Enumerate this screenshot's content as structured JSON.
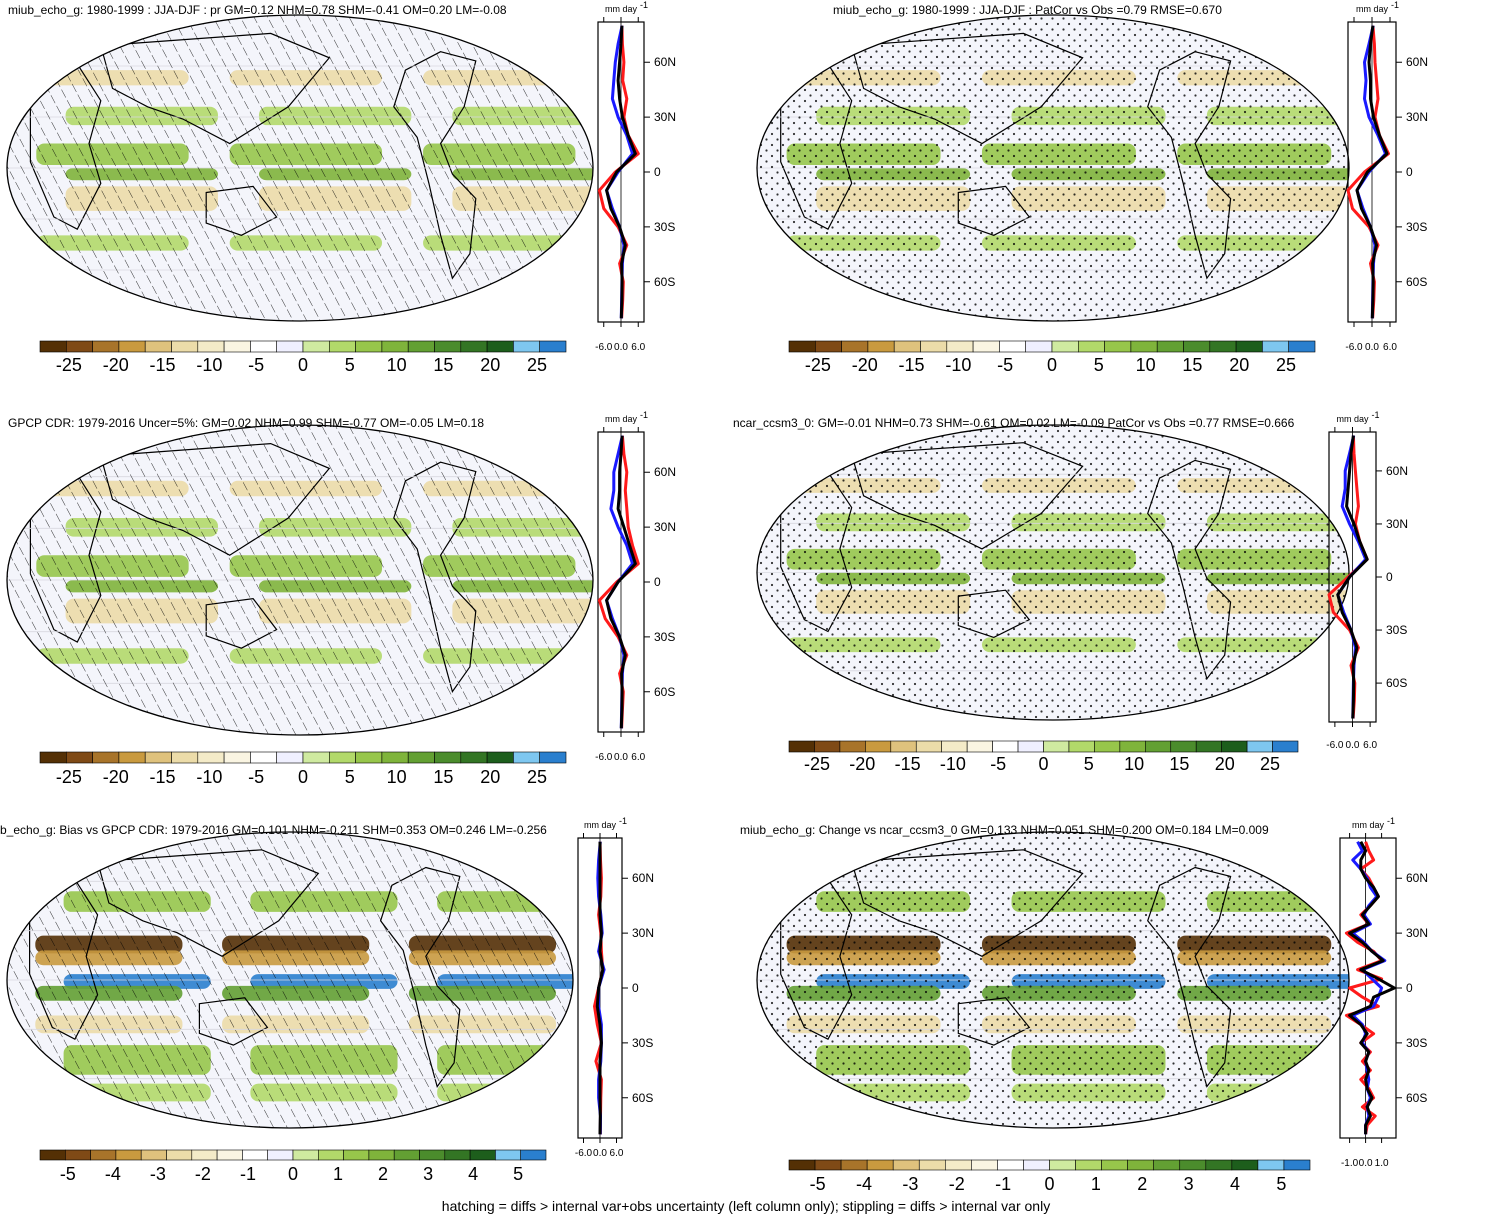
{
  "footnote": "hatching = diffs > internal var+obs uncertainty (left column only); stippling = diffs > internal var only",
  "colors": {
    "palette": [
      "#543005",
      "#7f4a16",
      "#a8742a",
      "#c99a3f",
      "#dfc27d",
      "#ecdca9",
      "#f4ebc8",
      "#faf5e2",
      "#ffffff",
      "#f0f0ff",
      "#cfeaa0",
      "#b2d96a",
      "#97c64b",
      "#7fb43b",
      "#63a033",
      "#4b8c2c",
      "#337524",
      "#1d5e1c",
      "#7ec7f0",
      "#2a7fce"
    ],
    "land_outline": "#000000",
    "series": {
      "red": "#ff1a1a",
      "blue": "#1a1aff",
      "black": "#000000"
    }
  },
  "chart_data": [
    {
      "id": "p1",
      "type": "map",
      "title": "miub_echo_g: 1980-1999 : JJA-DJF : pr GM=0.12 NHM=0.78 SHM=-0.41 OM=0.20 LM=-0.08",
      "overlay": "hatching",
      "colorbar": {
        "labels": [
          "-25",
          "-20",
          "-15",
          "-10",
          "-5",
          "0",
          "5",
          "10",
          "15",
          "20",
          "25"
        ]
      },
      "profile": {
        "type": "line",
        "unit_label": "mm day",
        "unit_exp": "-1",
        "xticks": [
          "-6.0",
          "0.0",
          "6.0"
        ],
        "xlim": [
          -8,
          8
        ],
        "yticks": [
          "60N",
          "30N",
          "0",
          "30S",
          "60S"
        ],
        "yvals": [
          60,
          30,
          0,
          -30,
          -60
        ],
        "ylim": [
          -82,
          82
        ],
        "lat": [
          80,
          70,
          60,
          50,
          40,
          30,
          20,
          10,
          0,
          -10,
          -20,
          -30,
          -40,
          -50,
          -60,
          -70,
          -80
        ],
        "series": [
          {
            "color": "red",
            "values": [
              0.3,
              0.5,
              1.0,
              0.6,
              2.0,
              1.0,
              2.5,
              6.0,
              -2.0,
              -7.5,
              -6.0,
              -1.0,
              2.0,
              -0.5,
              0.8,
              0.6,
              0.2
            ]
          },
          {
            "color": "blue",
            "values": [
              0.4,
              -1.0,
              -2.0,
              -2.5,
              -3.0,
              -1.0,
              2.0,
              4.0,
              -1.0,
              -5.0,
              -3.0,
              -0.5,
              1.0,
              0.5,
              0.3,
              0.2,
              0.1
            ]
          },
          {
            "color": "black",
            "values": [
              0.3,
              0.0,
              -0.5,
              -1.0,
              -0.5,
              0.5,
              2.5,
              5.0,
              -1.5,
              -5.0,
              -3.5,
              -0.5,
              1.5,
              0.2,
              0.4,
              0.3,
              0.1
            ]
          }
        ]
      }
    },
    {
      "id": "p2",
      "type": "map",
      "title": "miub_echo_g: 1980-1999 : JJA-DJF : PatCor vs Obs =0.79 RMSE=0.670",
      "overlay": "stippling",
      "colorbar": {
        "labels": [
          "-25",
          "-20",
          "-15",
          "-10",
          "-5",
          "0",
          "5",
          "10",
          "15",
          "20",
          "25"
        ]
      },
      "profile": {
        "type": "line",
        "unit_label": "mm day",
        "unit_exp": "-1",
        "xticks": [
          "-6.0",
          "0.0",
          "6.0"
        ],
        "xlim": [
          -8,
          8
        ],
        "yticks": [
          "60N",
          "30N",
          "0",
          "30S",
          "60S"
        ],
        "yvals": [
          60,
          30,
          0,
          -30,
          -60
        ],
        "ylim": [
          -82,
          82
        ],
        "lat": [
          80,
          70,
          60,
          50,
          40,
          30,
          20,
          10,
          0,
          -10,
          -20,
          -30,
          -40,
          -50,
          -60,
          -70,
          -80
        ],
        "series": [
          {
            "color": "red",
            "values": [
              0.3,
              0.8,
              1.0,
              1.5,
              2.0,
              1.0,
              2.5,
              5.5,
              -2.5,
              -8.0,
              -6.5,
              -1.0,
              2.0,
              -0.5,
              0.8,
              0.6,
              0.2
            ]
          },
          {
            "color": "blue",
            "values": [
              0.4,
              -1.0,
              -2.5,
              -2.0,
              -2.5,
              -1.0,
              2.0,
              4.5,
              -1.0,
              -5.0,
              -3.0,
              -0.5,
              1.0,
              0.5,
              0.3,
              0.2,
              0.1
            ]
          },
          {
            "color": "black",
            "values": [
              0.3,
              -0.5,
              -1.0,
              -0.5,
              -0.5,
              0.5,
              2.5,
              5.0,
              -1.5,
              -5.0,
              -3.5,
              -0.5,
              1.5,
              0.2,
              0.4,
              0.3,
              0.1
            ]
          }
        ]
      }
    },
    {
      "id": "p3",
      "type": "map",
      "title": "GPCP CDR: 1979-2016 Uncer=5%: GM=0.02 NHM=0.99 SHM=-0.77 OM=-0.05 LM=0.18",
      "overlay": "hatching",
      "colorbar": {
        "labels": [
          "-25",
          "-20",
          "-15",
          "-10",
          "-5",
          "0",
          "5",
          "10",
          "15",
          "20",
          "25"
        ]
      },
      "profile": {
        "type": "line",
        "unit_label": "mm day",
        "unit_exp": "-1",
        "xticks": [
          "-6.0",
          "0.0",
          "6.0"
        ],
        "xlim": [
          -8,
          8
        ],
        "yticks": [
          "60N",
          "30N",
          "0",
          "30S",
          "60S"
        ],
        "yvals": [
          60,
          30,
          0,
          -30,
          -60
        ],
        "ylim": [
          -82,
          82
        ],
        "lat": [
          80,
          70,
          60,
          50,
          40,
          30,
          20,
          10,
          0,
          -10,
          -20,
          -30,
          -40,
          -50,
          -60,
          -70,
          -80
        ],
        "series": [
          {
            "color": "red",
            "values": [
              0.5,
              1.0,
              2.0,
              1.5,
              2.0,
              2.5,
              4.0,
              6.0,
              -1.5,
              -7.5,
              -5.5,
              -1.0,
              2.0,
              -0.5,
              0.8,
              0.5,
              0.2
            ]
          },
          {
            "color": "blue",
            "values": [
              0.5,
              -1.0,
              -2.5,
              -2.5,
              -3.5,
              -1.0,
              2.0,
              4.0,
              -1.0,
              -5.0,
              -3.0,
              -0.5,
              1.0,
              0.5,
              0.3,
              0.2,
              0.1
            ]
          },
          {
            "color": "black",
            "values": [
              0.4,
              0.0,
              -0.5,
              -0.5,
              -1.0,
              1.0,
              3.0,
              5.0,
              -1.0,
              -5.0,
              -3.5,
              -0.5,
              1.5,
              0.2,
              0.4,
              0.3,
              0.1
            ]
          }
        ]
      }
    },
    {
      "id": "p4",
      "type": "map",
      "title": "ncar_ccsm3_0: GM=-0.01 NHM=0.73 SHM=-0.61 OM=0.02 LM=-0.09 PatCor vs Obs =0.77 RMSE=0.666",
      "overlay": "stippling",
      "colorbar": {
        "labels": [
          "-25",
          "-20",
          "-15",
          "-10",
          "-5",
          "0",
          "5",
          "10",
          "15",
          "20",
          "25"
        ]
      },
      "profile": {
        "type": "line",
        "unit_label": "mm day",
        "unit_exp": "-1",
        "xticks": [
          "-6.0",
          "0.0",
          "6.0"
        ],
        "xlim": [
          -8,
          8
        ],
        "yticks": [
          "60N",
          "30N",
          "0",
          "30S",
          "60S"
        ],
        "yvals": [
          60,
          30,
          0,
          -30,
          -60
        ],
        "ylim": [
          -82,
          82
        ],
        "lat": [
          80,
          70,
          60,
          50,
          40,
          30,
          20,
          10,
          0,
          -10,
          -20,
          -30,
          -40,
          -50,
          -60,
          -70,
          -80
        ],
        "series": [
          {
            "color": "red",
            "values": [
              0.3,
              0.5,
              1.0,
              1.5,
              2.0,
              1.0,
              2.5,
              5.0,
              -1.5,
              -8.0,
              -6.5,
              -1.0,
              2.0,
              -0.5,
              0.8,
              0.6,
              0.2
            ]
          },
          {
            "color": "blue",
            "values": [
              0.4,
              -1.0,
              -2.5,
              -2.5,
              -3.5,
              -1.0,
              2.0,
              4.5,
              -1.0,
              -5.0,
              -3.0,
              -0.5,
              1.0,
              0.5,
              0.3,
              0.2,
              0.1
            ]
          },
          {
            "color": "black",
            "values": [
              0.3,
              -0.5,
              -1.0,
              -1.5,
              -2.0,
              0.5,
              2.5,
              5.0,
              -1.0,
              -5.0,
              -3.5,
              -0.5,
              1.5,
              0.2,
              0.4,
              0.3,
              0.1
            ]
          }
        ]
      }
    },
    {
      "id": "p5",
      "type": "map",
      "title": "b_echo_g: Bias vs GPCP CDR: 1979-2016 GM=0.101 NHM=-0.211 SHM=0.353 OM=0.246 LM=-0.256",
      "overlay": "hatching",
      "colorbar": {
        "labels": [
          "-5",
          "-4",
          "-3",
          "-2",
          "-1",
          "0",
          "1",
          "2",
          "3",
          "4",
          "5"
        ]
      },
      "profile": {
        "type": "line",
        "unit_label": "mm day",
        "unit_exp": "-1",
        "xticks": [
          "-6.0",
          "0.0",
          "6.0"
        ],
        "xlim": [
          -8,
          8
        ],
        "yticks": [
          "60N",
          "30N",
          "0",
          "30S",
          "60S"
        ],
        "yvals": [
          60,
          30,
          0,
          -30,
          -60
        ],
        "ylim": [
          -82,
          82
        ],
        "lat": [
          80,
          70,
          60,
          50,
          40,
          30,
          20,
          10,
          0,
          -10,
          -20,
          -30,
          -40,
          -50,
          -60,
          -70,
          -80
        ],
        "series": [
          {
            "color": "red",
            "values": [
              0.0,
              0.2,
              0.5,
              0.3,
              -0.5,
              0.3,
              0.5,
              1.0,
              -0.5,
              -2.0,
              -1.0,
              0.5,
              -1.5,
              0.5,
              0.3,
              0.2,
              0.1
            ]
          },
          {
            "color": "blue",
            "values": [
              0.1,
              -0.5,
              -0.8,
              -0.5,
              0.3,
              0.8,
              -0.5,
              1.5,
              -0.5,
              -0.5,
              0.5,
              0.5,
              0.3,
              -0.5,
              -0.5,
              0.2,
              0.1
            ]
          },
          {
            "color": "black",
            "values": [
              0.0,
              0.0,
              0.0,
              0.0,
              0.0,
              0.5,
              0.0,
              1.0,
              -0.5,
              -1.0,
              0.0,
              0.5,
              0.0,
              0.0,
              0.0,
              0.1,
              0.0
            ]
          }
        ]
      }
    },
    {
      "id": "p6",
      "type": "map",
      "title": "miub_echo_g: Change vs ncar_ccsm3_0 GM=0.133 NHM=0.051 SHM=0.200 OM=0.184 LM=0.009",
      "overlay": "stippling",
      "colorbar": {
        "labels": [
          "-5",
          "-4",
          "-3",
          "-2",
          "-1",
          "0",
          "1",
          "2",
          "3",
          "4",
          "5"
        ]
      },
      "profile": {
        "type": "line",
        "unit_label": "mm day",
        "unit_exp": "-1",
        "xticks": [
          "-1.0",
          "0.0",
          "1.0"
        ],
        "xlim": [
          -1.6,
          1.9
        ],
        "yticks": [
          "60N",
          "30N",
          "0",
          "30S",
          "60S"
        ],
        "yvals": [
          60,
          30,
          0,
          -30,
          -60
        ],
        "ylim": [
          -82,
          82
        ],
        "lat": [
          80,
          75,
          70,
          65,
          60,
          55,
          50,
          45,
          40,
          35,
          30,
          25,
          20,
          15,
          10,
          5,
          0,
          -5,
          -10,
          -15,
          -20,
          -25,
          -30,
          -35,
          -40,
          -45,
          -50,
          -55,
          -60,
          -65,
          -70,
          -75,
          -80
        ],
        "series": [
          {
            "color": "red",
            "values": [
              0.0,
              0.2,
              0.5,
              -0.3,
              0.2,
              0.5,
              0.8,
              0.3,
              -0.3,
              0.2,
              -1.2,
              -0.5,
              0.5,
              1.0,
              -0.5,
              1.0,
              -1.0,
              -0.2,
              0.8,
              -1.2,
              -0.3,
              0.5,
              -0.3,
              0.3,
              -0.2,
              0.3,
              -0.3,
              0.2,
              0.5,
              -0.2,
              0.6,
              0.1,
              0.0
            ]
          },
          {
            "color": "blue",
            "values": [
              -0.5,
              -0.2,
              -0.8,
              -0.3,
              0.1,
              0.3,
              0.7,
              0.2,
              -0.1,
              0.3,
              -0.8,
              -0.1,
              0.4,
              1.2,
              -0.2,
              0.4,
              1.0,
              0.8,
              0.5,
              -0.8,
              -0.2,
              0.0,
              -0.2,
              0.2,
              0.0,
              0.1,
              0.2,
              0.1,
              0.3,
              0.1,
              0.2,
              0.0,
              0.0
            ]
          },
          {
            "color": "black",
            "values": [
              -0.3,
              0.0,
              -0.3,
              -0.3,
              0.0,
              0.5,
              0.8,
              0.3,
              -0.2,
              0.2,
              -1.0,
              -0.2,
              0.4,
              1.1,
              -0.3,
              0.8,
              1.8,
              0.5,
              0.3,
              -1.0,
              -0.3,
              0.1,
              -0.3,
              0.2,
              0.0,
              0.2,
              0.0,
              0.1,
              0.4,
              0.1,
              0.3,
              0.0,
              0.0
            ]
          }
        ]
      }
    }
  ]
}
